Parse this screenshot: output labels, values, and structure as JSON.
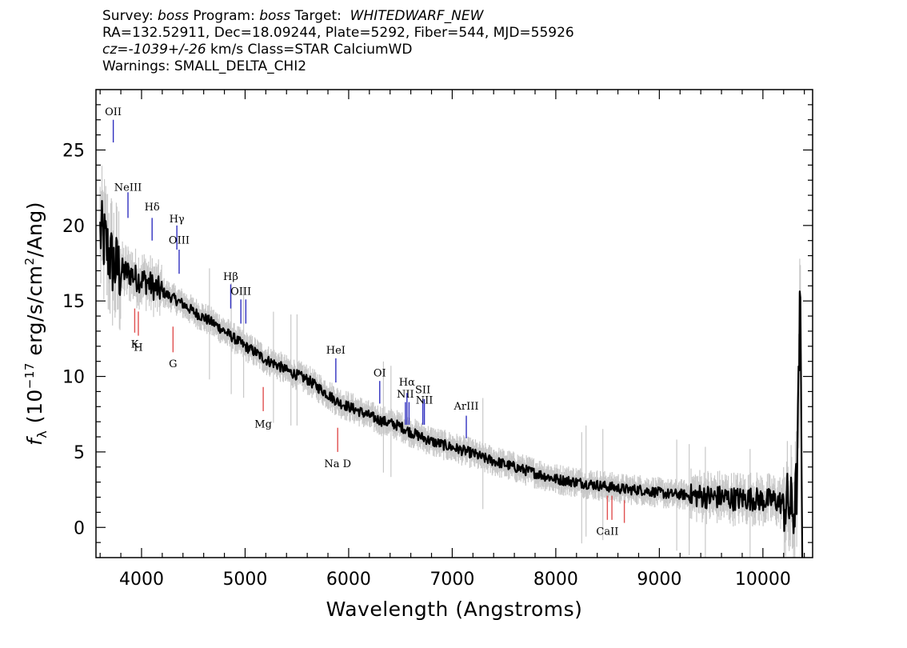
{
  "header": {
    "line1": {
      "survey_label": "Survey: ",
      "survey_value": "boss",
      "program_label": " Program: ",
      "program_value": "boss",
      "target_label": " Target:  ",
      "target_value": "WHITEDWARF_NEW"
    },
    "line2": "RA=132.52911, Dec=18.09244, Plate=5292, Fiber=544, MJD=55926",
    "line3": {
      "cz_value": "cz=-1039+/-26",
      "cz_rest": " km/s Class=STAR CalciumWD"
    },
    "line4": "Warnings: SMALL_DELTA_CHI2"
  },
  "chart_data": {
    "type": "line",
    "xlabel": "Wavelength (Angstroms)",
    "ylabel": "f_λ (10^-17 erg/s/cm^2/Ang)",
    "ylabel_parts": {
      "f": "f",
      "sub": "λ",
      "pre": " (10",
      "exp": "−17",
      "mid": " erg/s/cm",
      "exp2": "2",
      "post": "/Ang)"
    },
    "xlim": [
      3560,
      10480
    ],
    "ylim": [
      -2,
      29
    ],
    "x_ticks": [
      4000,
      5000,
      6000,
      7000,
      8000,
      9000,
      10000
    ],
    "x_tick_labels": [
      "4000",
      "5000",
      "6000",
      "7000",
      "8000",
      "9000",
      "10000"
    ],
    "y_ticks": [
      0,
      5,
      10,
      15,
      20,
      25
    ],
    "y_tick_labels": [
      "0",
      "5",
      "10",
      "15",
      "20",
      "25"
    ],
    "series": [
      {
        "role": "flux",
        "color": "#000000",
        "points": [
          [
            3600,
            19.5
          ],
          [
            3650,
            18.8
          ],
          [
            3700,
            17.8
          ],
          [
            3750,
            17.2
          ],
          [
            3800,
            17.0
          ],
          [
            3850,
            16.9
          ],
          [
            3900,
            16.8
          ],
          [
            3950,
            16.5
          ],
          [
            4000,
            16.4
          ],
          [
            4050,
            16.3
          ],
          [
            4100,
            16.0
          ],
          [
            4200,
            15.6
          ],
          [
            4300,
            15.2
          ],
          [
            4400,
            14.8
          ],
          [
            4500,
            14.3
          ],
          [
            4600,
            13.9
          ],
          [
            4700,
            13.5
          ],
          [
            4800,
            13.0
          ],
          [
            4900,
            12.5
          ],
          [
            5000,
            12.0
          ],
          [
            5100,
            11.6
          ],
          [
            5200,
            11.1
          ],
          [
            5300,
            10.8
          ],
          [
            5400,
            10.4
          ],
          [
            5500,
            10.1
          ],
          [
            5600,
            9.8
          ],
          [
            5700,
            9.3
          ],
          [
            5800,
            8.8
          ],
          [
            5900,
            8.3
          ],
          [
            6000,
            8.0
          ],
          [
            6100,
            7.7
          ],
          [
            6200,
            7.4
          ],
          [
            6300,
            7.1
          ],
          [
            6400,
            6.9
          ],
          [
            6500,
            6.7
          ],
          [
            6600,
            6.3
          ],
          [
            6700,
            6.0
          ],
          [
            6800,
            5.7
          ],
          [
            6900,
            5.5
          ],
          [
            7000,
            5.3
          ],
          [
            7100,
            5.1
          ],
          [
            7200,
            4.9
          ],
          [
            7300,
            4.6
          ],
          [
            7400,
            4.4
          ],
          [
            7500,
            4.2
          ],
          [
            7600,
            4.0
          ],
          [
            7700,
            3.8
          ],
          [
            7800,
            3.6
          ],
          [
            7900,
            3.4
          ],
          [
            8000,
            3.2
          ],
          [
            8100,
            3.1
          ],
          [
            8200,
            3.0
          ],
          [
            8300,
            2.9
          ],
          [
            8400,
            2.8
          ],
          [
            8500,
            2.7
          ],
          [
            8600,
            2.6
          ],
          [
            8700,
            2.5
          ],
          [
            8800,
            2.5
          ],
          [
            8900,
            2.4
          ],
          [
            9000,
            2.3
          ],
          [
            9100,
            2.2
          ],
          [
            9200,
            2.2
          ],
          [
            9300,
            2.1
          ],
          [
            9400,
            2.1
          ],
          [
            9500,
            2.0
          ],
          [
            9600,
            2.0
          ],
          [
            9700,
            1.9
          ],
          [
            9800,
            1.9
          ],
          [
            9900,
            1.9
          ],
          [
            10000,
            1.8
          ],
          [
            10100,
            1.8
          ],
          [
            10200,
            1.6
          ],
          [
            10250,
            1.5
          ],
          [
            10300,
            1.0
          ],
          [
            10330,
            3.0
          ],
          [
            10360,
            15.5
          ],
          [
            10380,
            -1.0
          ]
        ]
      },
      {
        "role": "uncertainty",
        "color": "#c8c8c8"
      }
    ],
    "emission_lines": [
      {
        "label": "OII",
        "wavelength": 3727,
        "label_y": 27.3,
        "tick_top": 27.0,
        "tick_bottom": 25.5,
        "color": "#3030c0"
      },
      {
        "label": "NeIII",
        "wavelength": 3869,
        "label_y": 22.3,
        "tick_top": 22.2,
        "tick_bottom": 20.5,
        "color": "#3030c0"
      },
      {
        "label": "Hδ",
        "wavelength": 4102,
        "label_y": 21.0,
        "tick_top": 20.5,
        "tick_bottom": 19.0,
        "color": "#3030c0"
      },
      {
        "label": "Hγ",
        "wavelength": 4341,
        "label_y": 20.2,
        "tick_top": 20.0,
        "tick_bottom": 18.4,
        "color": "#3030c0"
      },
      {
        "label": "OIII",
        "wavelength": 4363,
        "label_y": 18.8,
        "tick_top": 18.4,
        "tick_bottom": 16.8,
        "color": "#3030c0"
      },
      {
        "label": "Hβ",
        "wavelength": 4861,
        "label_y": 16.4,
        "tick_top": 16.1,
        "tick_bottom": 14.5,
        "color": "#3030c0"
      },
      {
        "label": "OIII",
        "wavelength": 4959,
        "label_y": 15.4,
        "tick_top": 15.1,
        "tick_bottom": 13.5,
        "color": "#3030c0"
      },
      {
        "label": "OIII",
        "wavelength": 5007,
        "label_y": 15.4,
        "tick_top": 15.1,
        "tick_bottom": 13.5,
        "color": "#3030c0",
        "hide_label": true
      },
      {
        "label": "HeI",
        "wavelength": 5876,
        "label_y": 11.5,
        "tick_top": 11.2,
        "tick_bottom": 9.6,
        "color": "#3030c0"
      },
      {
        "label": "OI",
        "wavelength": 6300,
        "label_y": 10.0,
        "tick_top": 9.7,
        "tick_bottom": 8.2,
        "color": "#3030c0"
      },
      {
        "label": "NII",
        "wavelength": 6548,
        "label_y": 8.6,
        "tick_top": 8.3,
        "tick_bottom": 6.8,
        "color": "#3030c0"
      },
      {
        "label": "Hα",
        "wavelength": 6563,
        "label_y": 9.4,
        "tick_top": 8.9,
        "tick_bottom": 6.8,
        "color": "#3030c0"
      },
      {
        "label": "NII",
        "wavelength": 6583,
        "label_y": 8.3,
        "tick_top": 8.3,
        "tick_bottom": 6.8,
        "color": "#3030c0",
        "hide_label": true
      },
      {
        "label": "SII",
        "wavelength": 6716,
        "label_y": 8.9,
        "tick_top": 8.5,
        "tick_bottom": 6.8,
        "color": "#3030c0"
      },
      {
        "label": "NII",
        "wavelength": 6731,
        "label_y": 8.2,
        "tick_top": 8.5,
        "tick_bottom": 6.8,
        "color": "#3030c0"
      },
      {
        "label": "ArIII",
        "wavelength": 7136,
        "label_y": 7.8,
        "tick_top": 7.4,
        "tick_bottom": 5.9,
        "color": "#3030c0"
      }
    ],
    "absorption_lines": [
      {
        "label": "K",
        "wavelength": 3934,
        "tick_top": 14.5,
        "tick_bottom": 12.9,
        "label_y": 11.9,
        "color": "#e05050"
      },
      {
        "label": "H",
        "wavelength": 3969,
        "tick_top": 14.3,
        "tick_bottom": 12.7,
        "label_y": 11.7,
        "color": "#e05050"
      },
      {
        "label": "G",
        "wavelength": 4304,
        "tick_top": 13.3,
        "tick_bottom": 11.6,
        "label_y": 10.6,
        "color": "#e05050"
      },
      {
        "label": "Mg",
        "wavelength": 5175,
        "tick_top": 9.3,
        "tick_bottom": 7.7,
        "label_y": 6.6,
        "color": "#e05050"
      },
      {
        "label": "Na  D",
        "wavelength": 5894,
        "tick_top": 6.6,
        "tick_bottom": 5.0,
        "label_y": 4.0,
        "color": "#e05050"
      },
      {
        "label": "CaII",
        "wavelength": 8498,
        "tick_top": 2.1,
        "tick_bottom": 0.5,
        "label_y": -0.5,
        "color": "#e05050"
      },
      {
        "label": "",
        "wavelength": 8542,
        "tick_top": 2.1,
        "tick_bottom": 0.5,
        "color": "#e05050"
      },
      {
        "label": "",
        "wavelength": 8662,
        "tick_top": 1.8,
        "tick_bottom": 0.3,
        "color": "#e05050"
      }
    ]
  }
}
